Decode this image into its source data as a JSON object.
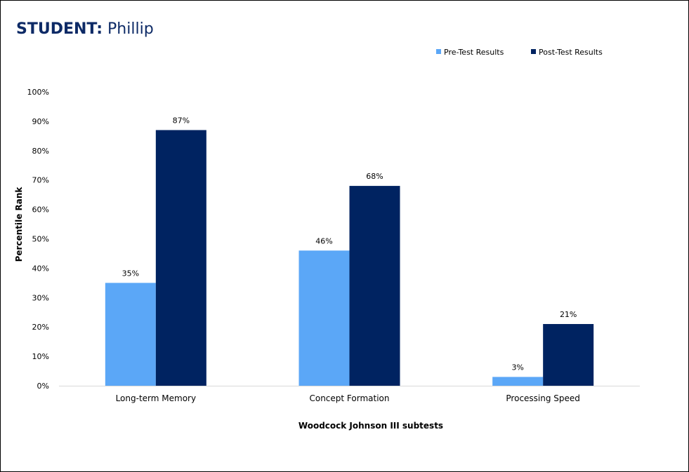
{
  "header": {
    "title_label": "STUDENT:",
    "title_value": "Phillip"
  },
  "chart_data": {
    "type": "bar",
    "categories": [
      "Long-term Memory",
      "Concept Formation",
      "Processing Speed"
    ],
    "series": [
      {
        "name": "Pre-Test Results",
        "color": "#5ba7f7",
        "values": [
          35,
          46,
          3
        ]
      },
      {
        "name": "Post-Test Results",
        "color": "#002361",
        "values": [
          87,
          68,
          21
        ]
      }
    ],
    "data_labels": [
      [
        "35%",
        "46%",
        "3%"
      ],
      [
        "87%",
        "68%",
        "21%"
      ]
    ],
    "xlabel": "Woodcock Johnson III subtests",
    "ylabel": "Percentile Rank",
    "ylim": [
      0,
      100
    ],
    "yticks": [
      "0%",
      "10%",
      "20%",
      "30%",
      "40%",
      "50%",
      "60%",
      "70%",
      "80%",
      "90%",
      "100%"
    ],
    "grid": false,
    "legend_position": "top-right"
  }
}
